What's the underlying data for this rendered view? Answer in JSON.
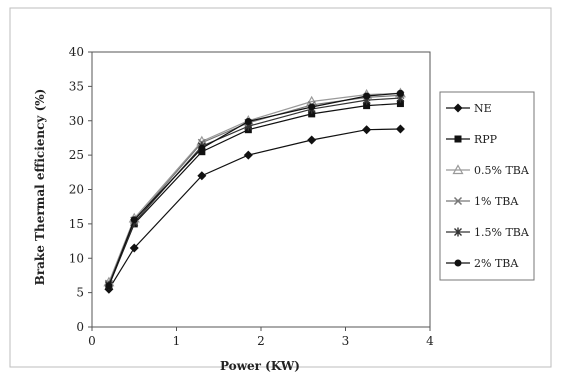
{
  "chart_data": {
    "type": "line",
    "title": "",
    "xlabel": "Power (KW)",
    "ylabel": "Brake Thermal efficiency (%)",
    "xlim": [
      0,
      4
    ],
    "ylim": [
      0,
      40
    ],
    "xticks": [
      0,
      1,
      2,
      3,
      4
    ],
    "yticks": [
      0,
      5,
      10,
      15,
      20,
      25,
      30,
      35,
      40
    ],
    "grid": false,
    "legend_position": "right",
    "series": [
      {
        "name": "NE",
        "marker": "diamond",
        "color": "#111111",
        "x": [
          0.2,
          0.5,
          1.3,
          1.85,
          2.6,
          3.25,
          3.65
        ],
        "y": [
          5.5,
          11.5,
          22.0,
          25.0,
          27.2,
          28.7,
          28.8
        ]
      },
      {
        "name": "RPP",
        "marker": "square",
        "color": "#111111",
        "x": [
          0.2,
          0.5,
          1.3,
          1.85,
          2.6,
          3.25,
          3.65
        ],
        "y": [
          6.0,
          15.0,
          25.5,
          28.7,
          31.0,
          32.2,
          32.5
        ]
      },
      {
        "name": "0.5% TBA",
        "marker": "triangle",
        "color": "#999999",
        "x": [
          0.2,
          0.5,
          1.3,
          1.85,
          2.6,
          3.25,
          3.65
        ],
        "y": [
          6.5,
          15.8,
          27.0,
          30.0,
          32.8,
          33.8,
          34.0
        ]
      },
      {
        "name": "1% TBA",
        "marker": "x",
        "color": "#777777",
        "x": [
          0.2,
          0.5,
          1.3,
          1.85,
          2.6,
          3.25,
          3.65
        ],
        "y": [
          6.3,
          15.5,
          26.8,
          29.7,
          32.3,
          33.4,
          33.7
        ]
      },
      {
        "name": "1.5% TBA",
        "marker": "star",
        "color": "#333333",
        "x": [
          0.2,
          0.5,
          1.3,
          1.85,
          2.6,
          3.25,
          3.65
        ],
        "y": [
          6.1,
          15.2,
          26.3,
          29.2,
          31.7,
          33.0,
          33.3
        ]
      },
      {
        "name": "2% TBA",
        "marker": "circle",
        "color": "#111111",
        "x": [
          0.2,
          0.5,
          1.3,
          1.85,
          2.6,
          3.25,
          3.65
        ],
        "y": [
          6.0,
          15.6,
          26.0,
          29.9,
          32.0,
          33.6,
          34.0
        ]
      }
    ]
  }
}
